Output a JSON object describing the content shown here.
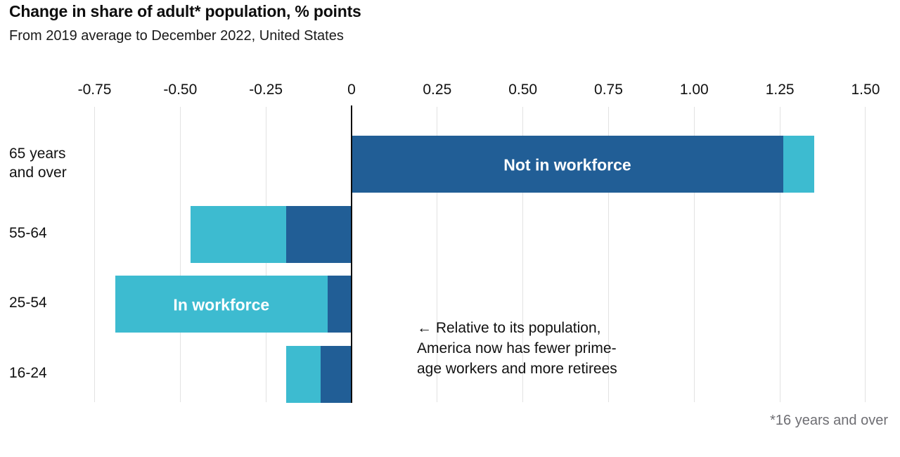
{
  "header": {
    "title": "Change in share of adult* population, % points",
    "subtitle": "From 2019 average to December 2022, United States"
  },
  "chart_data": {
    "type": "bar",
    "orientation": "horizontal",
    "stacked": true,
    "unit": "% points",
    "title": "Change in share of adult* population, % points",
    "subtitle": "From 2019 average to December 2022, United States",
    "categories": [
      "65 years and over",
      "55-64",
      "25-54",
      "16-24"
    ],
    "category_display": [
      [
        "65 years",
        "and over"
      ],
      [
        "55-64"
      ],
      [
        "25-54"
      ],
      [
        "16-24"
      ]
    ],
    "series": [
      {
        "name": "Not in workforce",
        "color": "#215e96",
        "values": [
          1.26,
          -0.19,
          -0.07,
          -0.09
        ]
      },
      {
        "name": "In workforce",
        "color": "#3dbbd0",
        "values": [
          0.09,
          -0.28,
          -0.62,
          -0.1
        ]
      }
    ],
    "x_ticks": {
      "values": [
        -0.75,
        -0.5,
        -0.25,
        0,
        0.25,
        0.5,
        0.75,
        1.0,
        1.25,
        1.5
      ],
      "labels": [
        "-0.75",
        "-0.50",
        "-0.25",
        "0",
        "0.25",
        "0.50",
        "0.75",
        "1.00",
        "1.25",
        "1.50"
      ]
    },
    "xlim": [
      -0.75,
      1.5
    ],
    "grid": "vertical-light-gray",
    "zero_axis": "black",
    "legend_position": "labels-inside-bars",
    "bar_labels": [
      {
        "text": "Not in workforce",
        "row": 0,
        "series": 0
      },
      {
        "text": "In workforce",
        "row": 2,
        "series": 1
      }
    ]
  },
  "annotation": {
    "lines": [
      "← Relative to its population,",
      "America now has fewer prime-",
      "age workers and more retirees"
    ]
  },
  "footnote": "*16 years and over"
}
